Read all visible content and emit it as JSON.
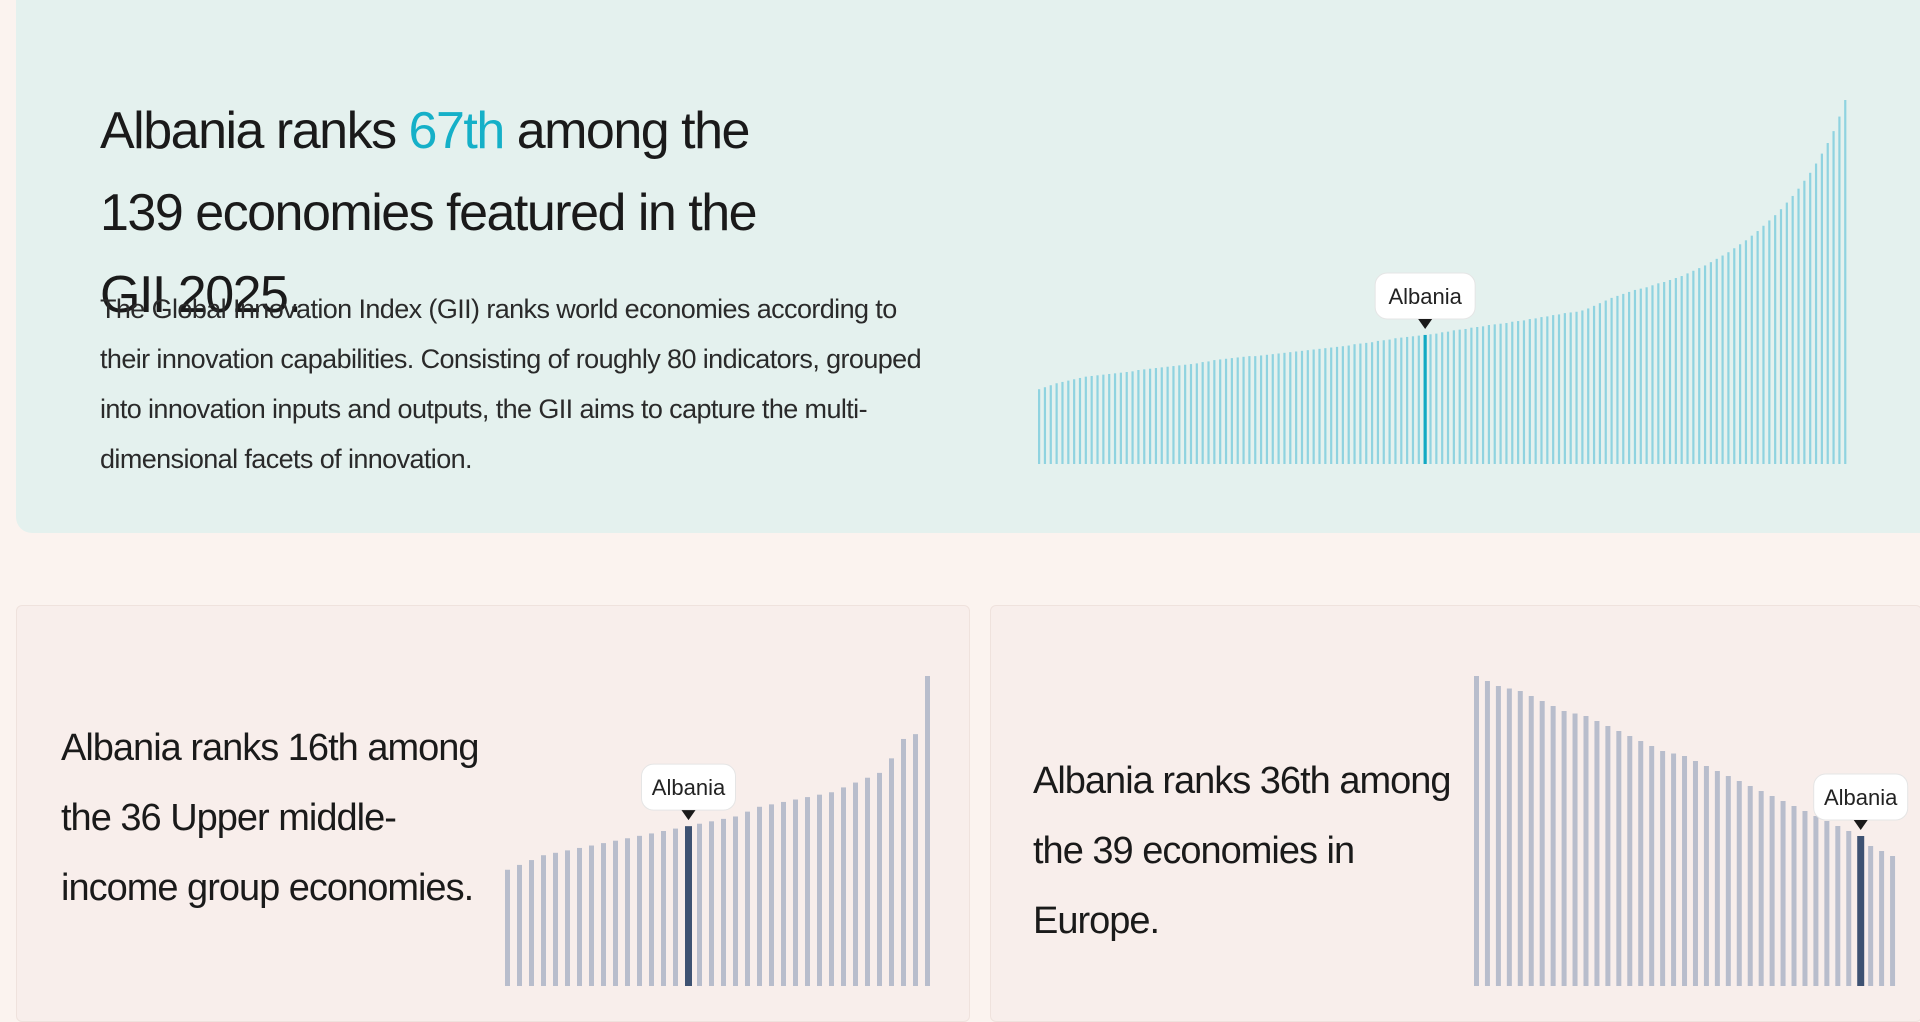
{
  "hero": {
    "title_prefix": "Albania ranks ",
    "rank": "67th",
    "title_suffix": " among the 139 economies featured in the GII 2025.",
    "description": "The Global Innovation Index (GII) ranks world economies according to their innovation capabilities. Consisting of roughly 80 indicators, grouped into innovation inputs and outputs, the GII aims to capture the multi-dimensional facets of innovation."
  },
  "income_card": {
    "title": "Albania ranks 16th among the 36 Upper middle-income group economies."
  },
  "region_card": {
    "title": "Albania ranks 36th among the 39 economies in Europe."
  },
  "colors": {
    "hero_bar": "#8fd3e0",
    "hero_highlight": "#12a9c3",
    "group_bar": "#b8bdcc",
    "group_highlight": "#3e5272"
  },
  "chart_data": [
    {
      "type": "bar",
      "n": 139,
      "highlight_label": "Albania",
      "highlight_rank": 67,
      "values": [
        11.3,
        11.6,
        11.9,
        12.2,
        12.4,
        12.6,
        12.8,
        13,
        13.2,
        13.3,
        13.4,
        13.5,
        13.6,
        13.7,
        13.8,
        13.9,
        14.0,
        14.2,
        14.3,
        14.4,
        14.5,
        14.6,
        14.7,
        14.8,
        14.9,
        15.0,
        15.1,
        15.2,
        15.4,
        15.5,
        15.7,
        15.8,
        15.9,
        16.0,
        16.1,
        16.2,
        16.3,
        16.3,
        16.4,
        16.5,
        16.6,
        16.7,
        16.8,
        16.9,
        17.0,
        17.1,
        17.2,
        17.3,
        17.4,
        17.5,
        17.6,
        17.7,
        17.8,
        17.9,
        18.1,
        18.2,
        18.3,
        18.4,
        18.6,
        18.7,
        18.8,
        19.0,
        19.1,
        19.2,
        19.3,
        19.4,
        19.5,
        19.6,
        19.7,
        19.9,
        20.0,
        20.2,
        20.3,
        20.4,
        20.6,
        20.7,
        20.8,
        21.0,
        21.1,
        21.2,
        21.3,
        21.5,
        21.6,
        21.7,
        21.9,
        22.0,
        22.2,
        22.3,
        22.5,
        22.6,
        22.8,
        22.9,
        23.0,
        23.2,
        23.5,
        23.9,
        24.3,
        24.7,
        25.1,
        25.4,
        25.7,
        26.0,
        26.3,
        26.5,
        26.7,
        27.0,
        27.3,
        27.5,
        27.8,
        28.1,
        28.4,
        28.8,
        29.2,
        29.6,
        30.0,
        30.5,
        31.0,
        31.5,
        32.0,
        32.6,
        33.2,
        33.8,
        34.5,
        35.2,
        36.0,
        36.8,
        37.6,
        38.5,
        39.5,
        40.5,
        41.6,
        42.8,
        44.0,
        45.4,
        46.9,
        48.5,
        50.3,
        52.5,
        55.0
      ]
    },
    {
      "type": "bar",
      "n": 36,
      "highlight_label": "Albania",
      "highlight_rank": 16,
      "values": [
        24,
        25,
        26,
        27,
        27.5,
        28,
        28.5,
        29,
        29.5,
        30,
        30.5,
        31,
        31.5,
        32,
        32.5,
        33,
        33.5,
        34,
        34.5,
        35,
        36,
        37,
        37.5,
        38,
        38.5,
        39,
        39.5,
        40,
        41,
        42,
        43,
        44,
        47,
        51,
        52,
        64
      ]
    },
    {
      "type": "bar",
      "n": 39,
      "highlight_label": "Albania",
      "highlight_rank": 36,
      "values": [
        62,
        61,
        60,
        59.5,
        59,
        58,
        57,
        56,
        55,
        54.5,
        54,
        53,
        52,
        51,
        50,
        49,
        48,
        47,
        46.5,
        46,
        45,
        44,
        43,
        42,
        41,
        40,
        39,
        38,
        37,
        36,
        35,
        34,
        33,
        32,
        31,
        30,
        28,
        27,
        26
      ]
    }
  ]
}
